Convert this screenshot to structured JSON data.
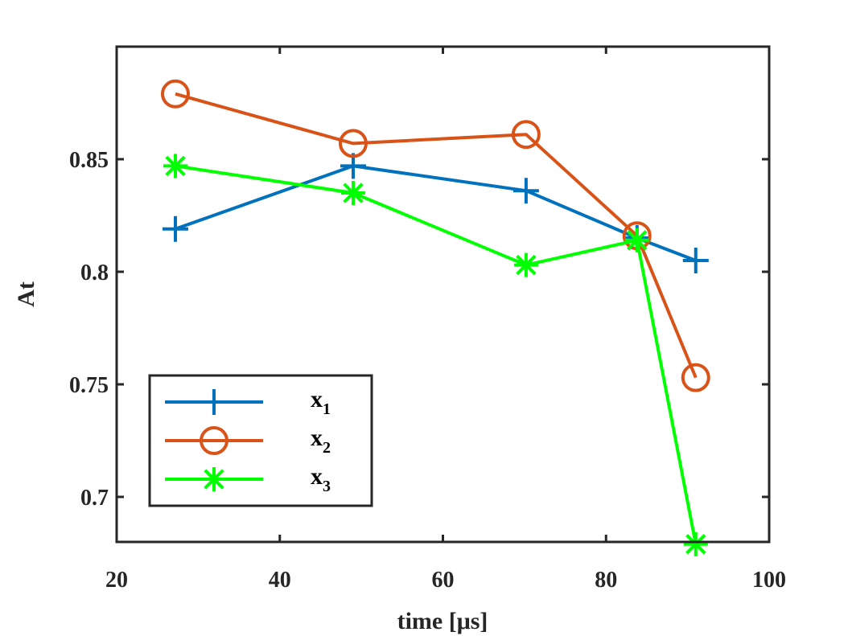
{
  "chart_data": {
    "type": "line",
    "xlabel": "time [μs]",
    "ylabel": "At",
    "xlim": [
      20,
      100
    ],
    "ylim": [
      0.68,
      0.9
    ],
    "xticks": [
      20,
      40,
      60,
      80,
      100
    ],
    "xtick_labels": [
      "20",
      "40",
      "60",
      "80",
      "100"
    ],
    "yticks": [
      0.7,
      0.75,
      0.8,
      0.85
    ],
    "ytick_labels": [
      "0.7",
      "0.75",
      "0.8",
      "0.85"
    ],
    "grid": false,
    "legend_position": "bottom-left",
    "series": [
      {
        "name": "x1",
        "label_main": "x",
        "label_sub": "1",
        "color": "#0072BD",
        "marker": "plus",
        "x": [
          27.2,
          49.0,
          70.2,
          83.8,
          91.0
        ],
        "y": [
          0.819,
          0.847,
          0.836,
          0.815,
          0.805
        ]
      },
      {
        "name": "x2",
        "label_main": "x",
        "label_sub": "2",
        "color": "#D95319",
        "marker": "circle",
        "x": [
          27.2,
          49.0,
          70.2,
          83.8,
          91.0
        ],
        "y": [
          0.879,
          0.857,
          0.861,
          0.816,
          0.753
        ]
      },
      {
        "name": "x3",
        "label_main": "x",
        "label_sub": "3",
        "color": "#00FF00",
        "marker": "asterisk",
        "x": [
          27.2,
          49.0,
          70.2,
          83.8,
          91.0
        ],
        "y": [
          0.847,
          0.835,
          0.803,
          0.814,
          0.679
        ]
      }
    ]
  }
}
